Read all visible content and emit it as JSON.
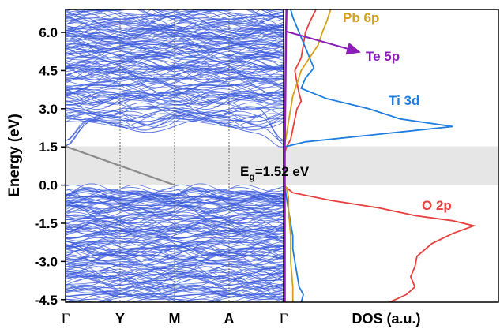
{
  "chart_data": [
    {
      "type": "line",
      "panel": "band-structure",
      "ylabel": "Energy (eV)",
      "ylim": [
        -4.6,
        6.9
      ],
      "yticks": [
        "6.0",
        "4.5",
        "3.0",
        "1.5",
        "0.0",
        "-1.5",
        "-3.0",
        "-4.5"
      ],
      "ytick_values": [
        6.0,
        4.5,
        3.0,
        1.5,
        0.0,
        -1.5,
        -3.0,
        -4.5
      ],
      "kpath_labels": [
        "Γ",
        "Y",
        "M",
        "A",
        "Γ"
      ],
      "band_color": "#3b5bdb",
      "gap_shading_color": "#e6e6e6",
      "gap_range": [
        0.0,
        1.52
      ],
      "conduction_band_min": 1.52,
      "valence_band_max": 0.0,
      "conduction_region": [
        1.52,
        6.9
      ],
      "valence_region": [
        -4.6,
        -0.05
      ],
      "indirect_transition": {
        "from": {
          "k": "Γ",
          "energy": 1.52
        },
        "to": {
          "k": "M",
          "energy": 0.0
        },
        "color": "#8c8c8c"
      },
      "annotation": {
        "symbol": "E",
        "subscript": "g",
        "value_text": "=1.52 eV"
      }
    },
    {
      "type": "line",
      "panel": "DOS",
      "xlabel": "DOS (a.u.)",
      "ylim": [
        -4.6,
        6.9
      ],
      "series": [
        {
          "name": "O 2p",
          "color": "#e8403f",
          "energies": [
            -4.6,
            -4.3,
            -4.0,
            -3.6,
            -3.2,
            -2.8,
            -2.3,
            -1.9,
            -1.6,
            -1.4,
            -1.2,
            -0.9,
            -0.6,
            -0.3,
            -0.1,
            0.0,
            0.3,
            0.8,
            1.2,
            1.5,
            1.8,
            2.2,
            2.6,
            3.0,
            3.3,
            3.6,
            4.0,
            4.5,
            5.0,
            5.5,
            6.0,
            6.4,
            6.9
          ],
          "values": [
            0.5,
            0.58,
            0.62,
            0.6,
            0.62,
            0.63,
            0.7,
            0.8,
            0.9,
            0.8,
            0.62,
            0.45,
            0.22,
            0.04,
            0.01,
            0.0,
            0.0,
            0.0,
            0.0,
            0.01,
            0.03,
            0.04,
            0.05,
            0.06,
            0.08,
            0.07,
            0.06,
            0.05,
            0.08,
            0.09,
            0.1,
            0.12,
            0.15
          ]
        },
        {
          "name": "Ti 3d",
          "color": "#1f7ee0",
          "energies": [
            -4.6,
            -4.3,
            -4.0,
            -3.5,
            -3.0,
            -2.5,
            -2.0,
            -1.5,
            -1.0,
            -0.5,
            -0.2,
            0.0,
            1.5,
            1.7,
            2.0,
            2.3,
            2.6,
            3.0,
            3.4,
            3.8,
            4.2,
            4.6,
            5.0,
            5.4,
            5.8,
            6.2,
            6.6,
            6.9
          ],
          "values": [
            0.08,
            0.09,
            0.07,
            0.06,
            0.05,
            0.04,
            0.04,
            0.03,
            0.02,
            0.01,
            0.005,
            0.0,
            0.0,
            0.1,
            0.45,
            0.8,
            0.55,
            0.4,
            0.2,
            0.08,
            0.1,
            0.14,
            0.12,
            0.1,
            0.08,
            0.06,
            0.04,
            0.03
          ]
        },
        {
          "name": "Pb 6p",
          "color": "#d4a017",
          "energies": [
            -4.6,
            -4.0,
            -3.0,
            -2.0,
            -1.0,
            -0.5,
            -0.1,
            0.0,
            1.5,
            2.0,
            2.5,
            3.0,
            3.5,
            4.0,
            4.5,
            5.0,
            5.5,
            6.0,
            6.4,
            6.9
          ],
          "values": [
            0.04,
            0.04,
            0.03,
            0.03,
            0.02,
            0.02,
            0.01,
            0.0,
            0.0,
            0.01,
            0.02,
            0.03,
            0.04,
            0.06,
            0.08,
            0.12,
            0.16,
            0.18,
            0.2,
            0.22
          ]
        },
        {
          "name": "Te 5p",
          "color": "#8b1fb8",
          "energies": [
            -4.6,
            0.0,
            1.5,
            3.0,
            4.5,
            6.0,
            6.9
          ],
          "values": [
            0.002,
            0.002,
            0.002,
            0.004,
            0.006,
            0.008,
            0.01
          ]
        }
      ]
    }
  ]
}
